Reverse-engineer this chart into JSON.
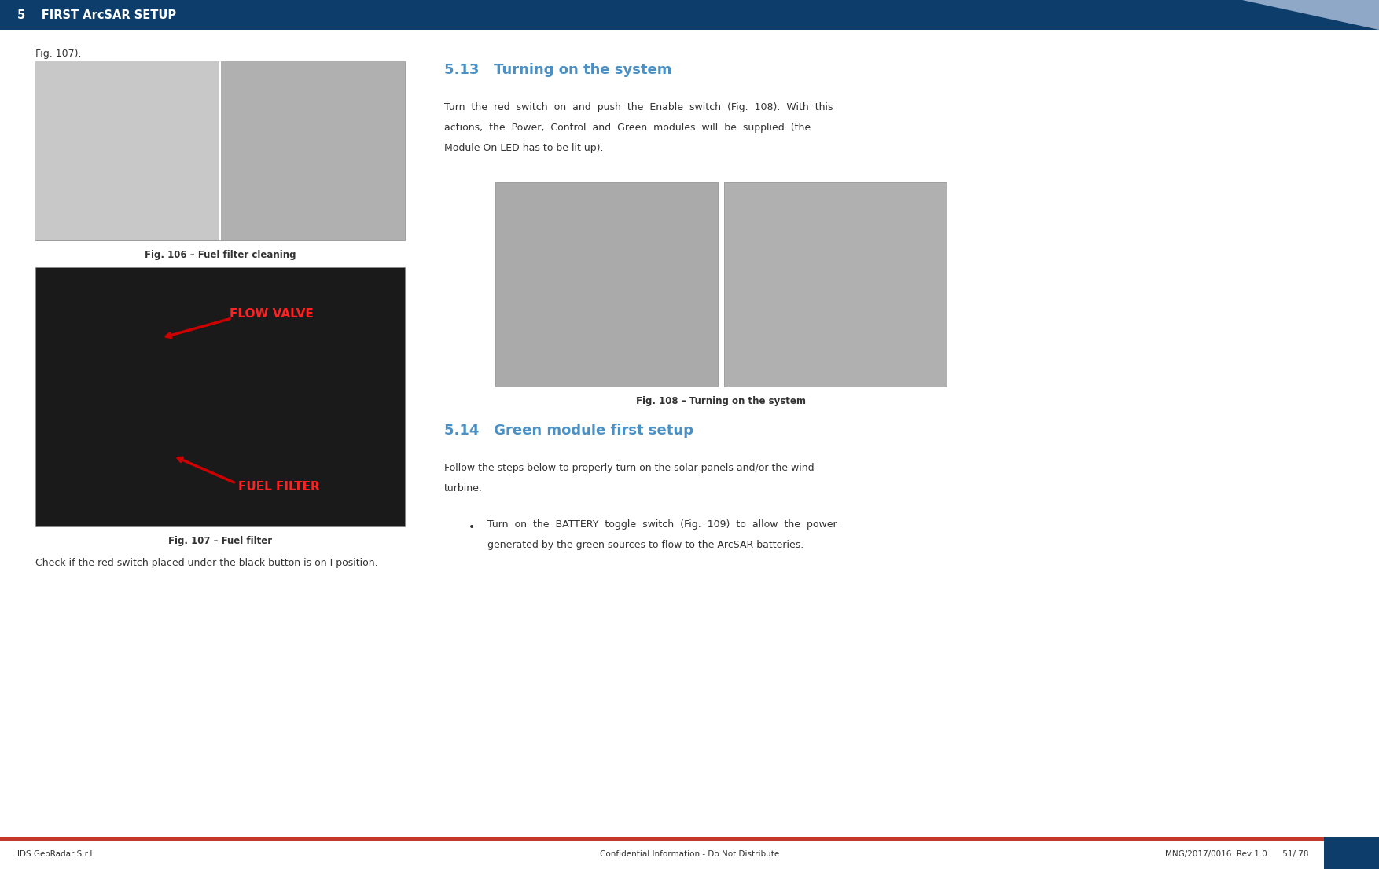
{
  "header_bg_color": "#0d3d6b",
  "header_text": "5    FIRST ArcSAR SETUP",
  "header_text_color": "#ffffff",
  "body_bg_color": "#ffffff",
  "footer_line_color": "#c0392b",
  "footer_left": "IDS GeoRadar S.r.l.",
  "footer_center": "Confidential Information - Do Not Distribute",
  "footer_right": "MNG/2017/0016  Rev 1.0      51/ 78",
  "footer_text_color": "#333333",
  "section_513_title": "5.13   Turning on the system",
  "section_514_title": "5.14   Green module first setup",
  "section_color": "#4a90c4",
  "fig107_ref": "Fig. 107).",
  "fig106_caption": "Fig. 106 – Fuel filter cleaning",
  "fig107_caption": "Fig. 107 – Fuel filter",
  "fig108_caption": "Fig. 108 – Turning on the system",
  "caption_color": "#333333",
  "body_text_513_l1": "Turn  the  red  switch  on  and  push  the  Enable  switch  (Fig.  108).  With  this",
  "body_text_513_l2": "actions,  the  Power,  Control  and  Green  modules  will  be  supplied  (the",
  "body_text_513_l3": "Module On LED has to be lit up).",
  "body_text_514_l1": "Follow the steps below to properly turn on the solar panels and/or the wind",
  "body_text_514_l2": "turbine.",
  "bullet_l1": "Turn  on  the  BATTERY  toggle  switch  (Fig.  109)  to  allow  the  power",
  "bullet_l2": "generated by the green sources to flow to the ArcSAR batteries.",
  "check_text": "Check if the red switch placed under the black button is on ​I​ position.",
  "page_bg": "#ffffff"
}
